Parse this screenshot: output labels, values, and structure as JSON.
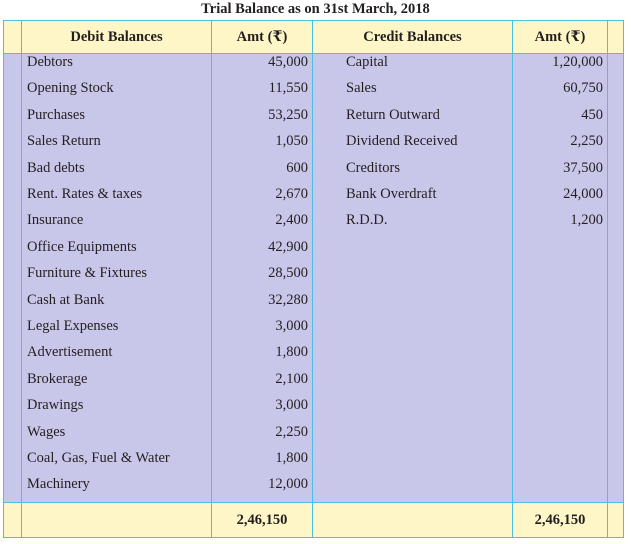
{
  "title": "Trial Balance as on 31st March, 2018",
  "headers": {
    "debit": "Debit Balances",
    "debit_amt": "Amt (₹)",
    "credit": "Credit Balances",
    "credit_amt": "Amt (₹)"
  },
  "debit_rows": [
    {
      "label": "Debtors",
      "amount": "45,000"
    },
    {
      "label": "Opening Stock",
      "amount": "11,550"
    },
    {
      "label": "Purchases",
      "amount": "53,250"
    },
    {
      "label": "Sales Return",
      "amount": "1,050"
    },
    {
      "label": "Bad debts",
      "amount": "600"
    },
    {
      "label": "Rent. Rates & taxes",
      "amount": "2,670"
    },
    {
      "label": "Insurance",
      "amount": "2,400"
    },
    {
      "label": "Office Equipments",
      "amount": "42,900"
    },
    {
      "label": "Furniture & Fixtures",
      "amount": "28,500"
    },
    {
      "label": "Cash at Bank",
      "amount": "32,280"
    },
    {
      "label": "Legal Expenses",
      "amount": "3,000"
    },
    {
      "label": "Advertisement",
      "amount": "1,800"
    },
    {
      "label": "Brokerage",
      "amount": "2,100"
    },
    {
      "label": "Drawings",
      "amount": "3,000"
    },
    {
      "label": "Wages",
      "amount": "2,250"
    },
    {
      "label": "Coal, Gas, Fuel & Water",
      "amount": "1,800"
    },
    {
      "label": "Machinery",
      "amount": "12,000"
    }
  ],
  "credit_rows": [
    {
      "label": "Capital",
      "amount": "1,20,000"
    },
    {
      "label": "Sales",
      "amount": "60,750"
    },
    {
      "label": "Return Outward",
      "amount": "450"
    },
    {
      "label": "Dividend Received",
      "amount": "2,250"
    },
    {
      "label": "Creditors",
      "amount": "37,500"
    },
    {
      "label": "Bank Overdraft",
      "amount": "24,000"
    },
    {
      "label": "R.D.D.",
      "amount": "1,200"
    }
  ],
  "totals": {
    "debit": "2,46,150",
    "credit": "2,46,150"
  }
}
